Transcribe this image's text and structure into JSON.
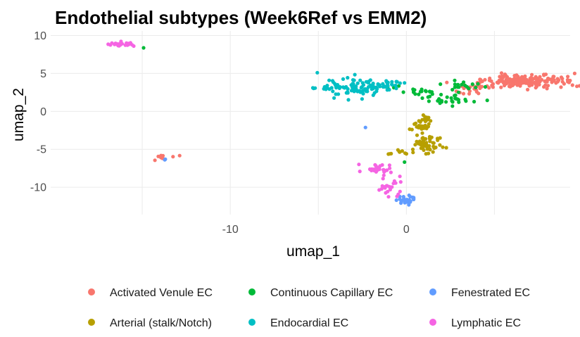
{
  "chart_data": {
    "type": "scatter",
    "title": "Endothelial subtypes (Week6Ref vs EMM2)",
    "xlabel": "umap_1",
    "ylabel": "umap_2",
    "xlim": [
      -20.2,
      9.3
    ],
    "ylim": [
      -13.6,
      10.6
    ],
    "x_ticks": [
      -10,
      0
    ],
    "x_tick_labels": [
      "-10",
      "0"
    ],
    "y_ticks": [
      10,
      5,
      0,
      -5,
      -10
    ],
    "y_tick_labels": [
      "10",
      "5",
      "0",
      "-5",
      "-10"
    ],
    "grid": true,
    "legend_position": "bottom",
    "series": [
      {
        "name": "Activated Venule EC",
        "color": "#F8766D",
        "clusters": [
          {
            "center": [
              7.0,
              4.0
            ],
            "spread": [
              1.2,
              0.45
            ],
            "n": 170
          },
          {
            "center": [
              4.2,
              3.3
            ],
            "spread": [
              0.7,
              0.45
            ],
            "n": 25
          },
          {
            "center": [
              3.5,
              2.6
            ],
            "spread": [
              0.4,
              0.3
            ],
            "n": 8
          },
          {
            "center": [
              -13.6,
              -5.9
            ],
            "spread": [
              0.35,
              0.2
            ],
            "n": 10
          }
        ]
      },
      {
        "name": "Arterial (stalk/Notch)",
        "color": "#B79F00",
        "clusters": [
          {
            "center": [
              1.2,
              -4.2
            ],
            "spread": [
              0.4,
              0.6
            ],
            "n": 50
          },
          {
            "center": [
              0.8,
              -2.2
            ],
            "spread": [
              0.25,
              0.45
            ],
            "n": 20
          },
          {
            "center": [
              1.1,
              -1.0
            ],
            "spread": [
              0.2,
              0.3
            ],
            "n": 12
          },
          {
            "center": [
              -0.1,
              -5.4
            ],
            "spread": [
              0.4,
              0.2
            ],
            "n": 12
          }
        ]
      },
      {
        "name": "Continuous Capillary EC",
        "color": "#00BA38",
        "clusters": [
          {
            "center": [
              0.8,
              2.6
            ],
            "spread": [
              0.55,
              0.2
            ],
            "n": 14
          },
          {
            "center": [
              2.2,
              1.6
            ],
            "spread": [
              0.8,
              0.4
            ],
            "n": 30
          },
          {
            "center": [
              2.8,
              3.4
            ],
            "spread": [
              0.6,
              0.4
            ],
            "n": 18
          },
          {
            "center": [
              -0.6,
              3.0
            ],
            "spread": [
              0.2,
              0.15
            ],
            "n": 3
          },
          {
            "center": [
              -0.1,
              -6.7
            ],
            "spread": [
              0.05,
              0.05
            ],
            "n": 1
          },
          {
            "center": [
              -15.0,
              8.4
            ],
            "spread": [
              0.05,
              0.05
            ],
            "n": 1
          }
        ]
      },
      {
        "name": "Endocardial EC",
        "color": "#00BFC4",
        "clusters": [
          {
            "center": [
              -2.4,
              3.2
            ],
            "spread": [
              0.9,
              0.6
            ],
            "n": 95
          },
          {
            "center": [
              -4.3,
              3.2
            ],
            "spread": [
              0.45,
              0.2
            ],
            "n": 15
          },
          {
            "center": [
              -0.9,
              3.5
            ],
            "spread": [
              0.45,
              0.3
            ],
            "n": 10
          }
        ]
      },
      {
        "name": "Fenestrated EC",
        "color": "#619CFF",
        "clusters": [
          {
            "center": [
              0.0,
              -11.7
            ],
            "spread": [
              0.25,
              0.3
            ],
            "n": 30
          },
          {
            "center": [
              -13.6,
              -6.4
            ],
            "spread": [
              0.1,
              0.1
            ],
            "n": 2
          },
          {
            "center": [
              -2.3,
              -2.1
            ],
            "spread": [
              0.05,
              0.05
            ],
            "n": 1
          }
        ]
      },
      {
        "name": "Lymphatic EC",
        "color": "#F564E3",
        "clusters": [
          {
            "center": [
              -1.6,
              -7.6
            ],
            "spread": [
              0.45,
              0.3
            ],
            "n": 30
          },
          {
            "center": [
              -0.9,
              -9.9
            ],
            "spread": [
              0.35,
              0.8
            ],
            "n": 22
          },
          {
            "center": [
              -16.0,
              8.8
            ],
            "spread": [
              0.4,
              0.15
            ],
            "n": 22
          }
        ]
      }
    ]
  }
}
